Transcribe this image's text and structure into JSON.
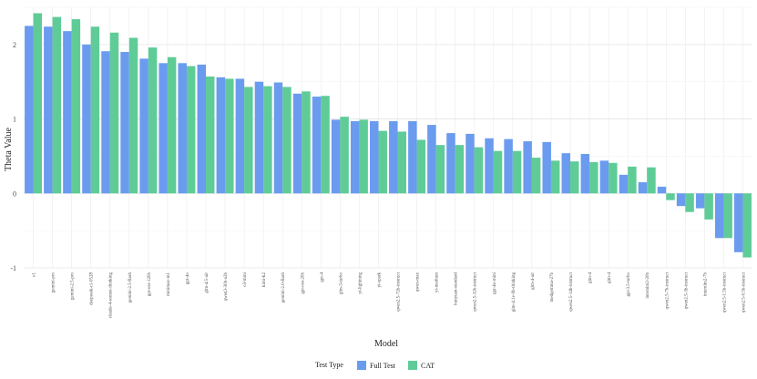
{
  "chart_data": {
    "type": "bar",
    "title": "",
    "xlabel": "Model",
    "ylabel": "Theta Value",
    "ylim": [
      -1,
      2.5
    ],
    "yticks": [
      -1,
      0,
      1,
      2
    ],
    "grid": true,
    "legend": {
      "title": "Test Type",
      "placement": "bottom"
    },
    "categories": [
      "o1",
      "gemini-pro",
      "gemini-2.5-pro",
      "deepseek-r1-0528",
      "claude-4-sonnet-thinking",
      "gemini-2.5-flash",
      "gpt-oss-120b",
      "minimax-m1",
      "gpt-4o",
      "glm-4.5-air",
      "qwen3-30b-a3b",
      "o3-mini",
      "kimi-k2",
      "gemini-2.0-flash",
      "gpt-oss-20b",
      "gpt-4",
      "glm-3-turbo",
      "yi-lightning",
      "yi-spark",
      "qwen2.5-72b-instruct",
      "qwen-max",
      "yi-medium",
      "hunyuan-standard",
      "qwen2.5-32b-instruct",
      "gpt-4o-mini",
      "glm-4.1v-9b-thinking",
      "glm-4-air",
      "medgemma-27b",
      "qwen2.5-14b-instruct",
      "glm-4",
      "glm-4",
      "gpt-3.5-turbo",
      "internlm2-20b",
      "qwen2.5-7b-instruct",
      "qwen2.5-3b-instruct",
      "internlm2-7b",
      "qwen2.5-1.5b-instruct",
      "qwen2.5-0.5b-instruct"
    ],
    "series": [
      {
        "name": "Full Test",
        "color": "#6a9bef",
        "values": [
          2.25,
          2.24,
          2.18,
          2.0,
          1.91,
          1.9,
          1.81,
          1.75,
          1.75,
          1.73,
          1.56,
          1.54,
          1.5,
          1.49,
          1.34,
          1.3,
          0.99,
          0.97,
          0.97,
          0.97,
          0.97,
          0.92,
          0.81,
          0.8,
          0.74,
          0.73,
          0.7,
          0.69,
          0.54,
          0.53,
          0.44,
          0.25,
          0.15,
          0.09,
          -0.17,
          -0.2,
          -0.6,
          -0.79
        ]
      },
      {
        "name": "CAT",
        "color": "#5fcc98",
        "values": [
          2.42,
          2.37,
          2.34,
          2.24,
          2.16,
          2.09,
          1.96,
          1.83,
          1.71,
          1.57,
          1.54,
          1.43,
          1.44,
          1.43,
          1.37,
          1.31,
          1.03,
          0.99,
          0.84,
          0.83,
          0.72,
          0.65,
          0.65,
          0.62,
          0.57,
          0.57,
          0.48,
          0.44,
          0.43,
          0.42,
          0.41,
          0.36,
          0.35,
          -0.09,
          -0.25,
          -0.35,
          -0.6,
          -0.86
        ]
      }
    ]
  }
}
